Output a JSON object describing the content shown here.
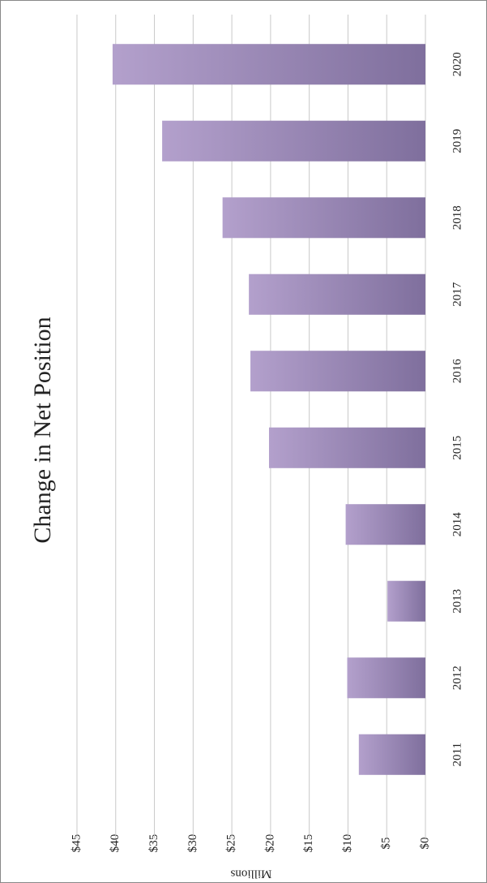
{
  "chart_data": {
    "type": "bar",
    "title": "Change in Net Position",
    "y_label": "Millions",
    "categories": [
      "2011",
      "2012",
      "2013",
      "2014",
      "2015",
      "2016",
      "2017",
      "2018",
      "2019",
      "2020"
    ],
    "values": [
      8.6,
      10.1,
      4.9,
      10.3,
      20.2,
      22.6,
      22.8,
      26.2,
      34.0,
      40.4
    ],
    "color": "#9d89bb",
    "ylim": [
      0,
      45
    ],
    "yticks": [
      {
        "value": 0,
        "label": "$0"
      },
      {
        "value": 5,
        "label": "$5"
      },
      {
        "value": 10,
        "label": "$10"
      },
      {
        "value": 15,
        "label": "$15"
      },
      {
        "value": 20,
        "label": "$20"
      },
      {
        "value": 25,
        "label": "$25"
      },
      {
        "value": 30,
        "label": "$30"
      },
      {
        "value": 35,
        "label": "$35"
      },
      {
        "value": 40,
        "label": "$40"
      },
      {
        "value": 45,
        "label": "$45"
      }
    ],
    "grid": true
  }
}
